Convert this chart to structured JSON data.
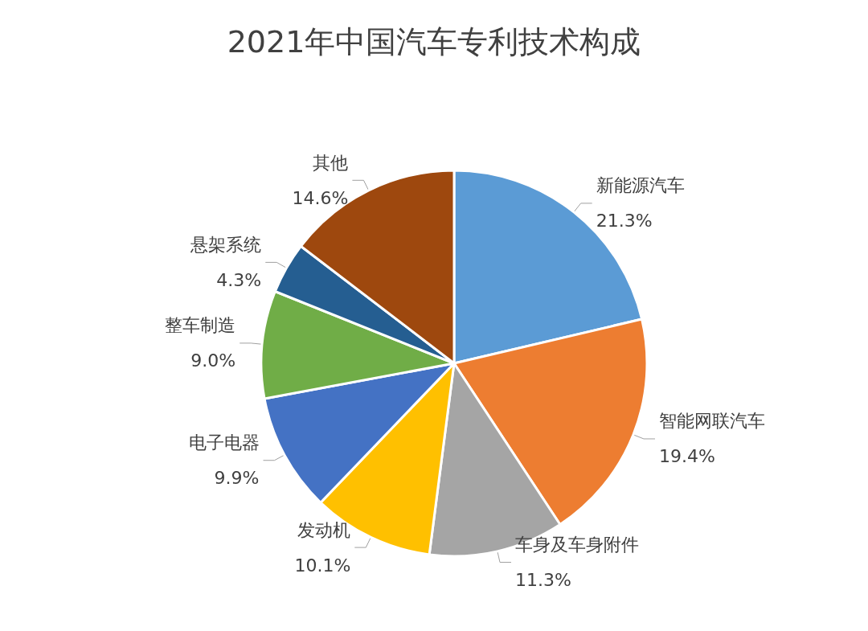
{
  "chart_data": {
    "type": "pie",
    "title": "2021年中国汽车专利技术构成",
    "categories": [
      "新能源汽车",
      "智能网联汽车",
      "车身及车身附件",
      "发动机",
      "电子电器",
      "整车制造",
      "悬架系统",
      "其他"
    ],
    "values": [
      21.3,
      19.4,
      11.3,
      10.1,
      9.9,
      9.0,
      4.3,
      14.6
    ],
    "colors": [
      "#5b9bd5",
      "#ed7d31",
      "#a5a5a5",
      "#ffc000",
      "#4472c4",
      "#70ad47",
      "#255e91",
      "#9e480e"
    ],
    "value_labels": [
      "21.3%",
      "19.4%",
      "11.3%",
      "10.1%",
      "9.9%",
      "9.0%",
      "4.3%",
      "14.6%"
    ],
    "legend": false
  }
}
